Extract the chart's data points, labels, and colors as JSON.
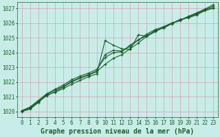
{
  "title": "Graphe pression niveau de la mer (hPa)",
  "bg_color": "#c8ede8",
  "grid_color": "#d4a0b0",
  "line_color": "#1a5c2a",
  "xmin": -0.5,
  "xmax": 23.5,
  "ymin": 1019.6,
  "ymax": 1027.4,
  "yticks": [
    1020,
    1021,
    1022,
    1023,
    1024,
    1025,
    1026,
    1027
  ],
  "xticks": [
    0,
    1,
    2,
    3,
    4,
    5,
    6,
    7,
    8,
    9,
    10,
    11,
    12,
    13,
    14,
    15,
    16,
    17,
    18,
    19,
    20,
    21,
    22,
    23
  ],
  "series": [
    [
      1020.0,
      1020.15,
      1020.6,
      1021.1,
      1021.3,
      1021.55,
      1021.85,
      1022.1,
      1022.35,
      1022.55,
      1024.8,
      1024.5,
      1024.25,
      1024.2,
      1025.2,
      1025.1,
      1025.5,
      1025.65,
      1025.95,
      1026.25,
      1026.35,
      1026.55,
      1026.85,
      1027.0
    ],
    [
      1020.0,
      1020.2,
      1020.65,
      1021.15,
      1021.45,
      1021.7,
      1022.05,
      1022.3,
      1022.5,
      1022.75,
      1023.85,
      1024.15,
      1024.1,
      1024.4,
      1024.85,
      1025.15,
      1025.45,
      1025.7,
      1025.95,
      1026.2,
      1026.4,
      1026.6,
      1026.85,
      1027.05
    ],
    [
      1020.05,
      1020.3,
      1020.75,
      1021.2,
      1021.5,
      1021.8,
      1022.15,
      1022.4,
      1022.6,
      1022.85,
      1023.65,
      1024.0,
      1024.05,
      1024.5,
      1024.85,
      1025.25,
      1025.55,
      1025.75,
      1026.0,
      1026.15,
      1026.45,
      1026.65,
      1026.9,
      1027.15
    ],
    [
      1020.05,
      1020.25,
      1020.7,
      1021.05,
      1021.35,
      1021.65,
      1022.0,
      1022.25,
      1022.45,
      1022.7,
      1023.2,
      1023.6,
      1023.85,
      1024.25,
      1024.65,
      1025.1,
      1025.4,
      1025.7,
      1026.0,
      1026.2,
      1026.45,
      1026.7,
      1026.95,
      1027.25
    ]
  ],
  "marker": "+",
  "marker_size": 3,
  "linewidth": 0.8,
  "title_fontsize": 7,
  "tick_fontsize": 5.5
}
